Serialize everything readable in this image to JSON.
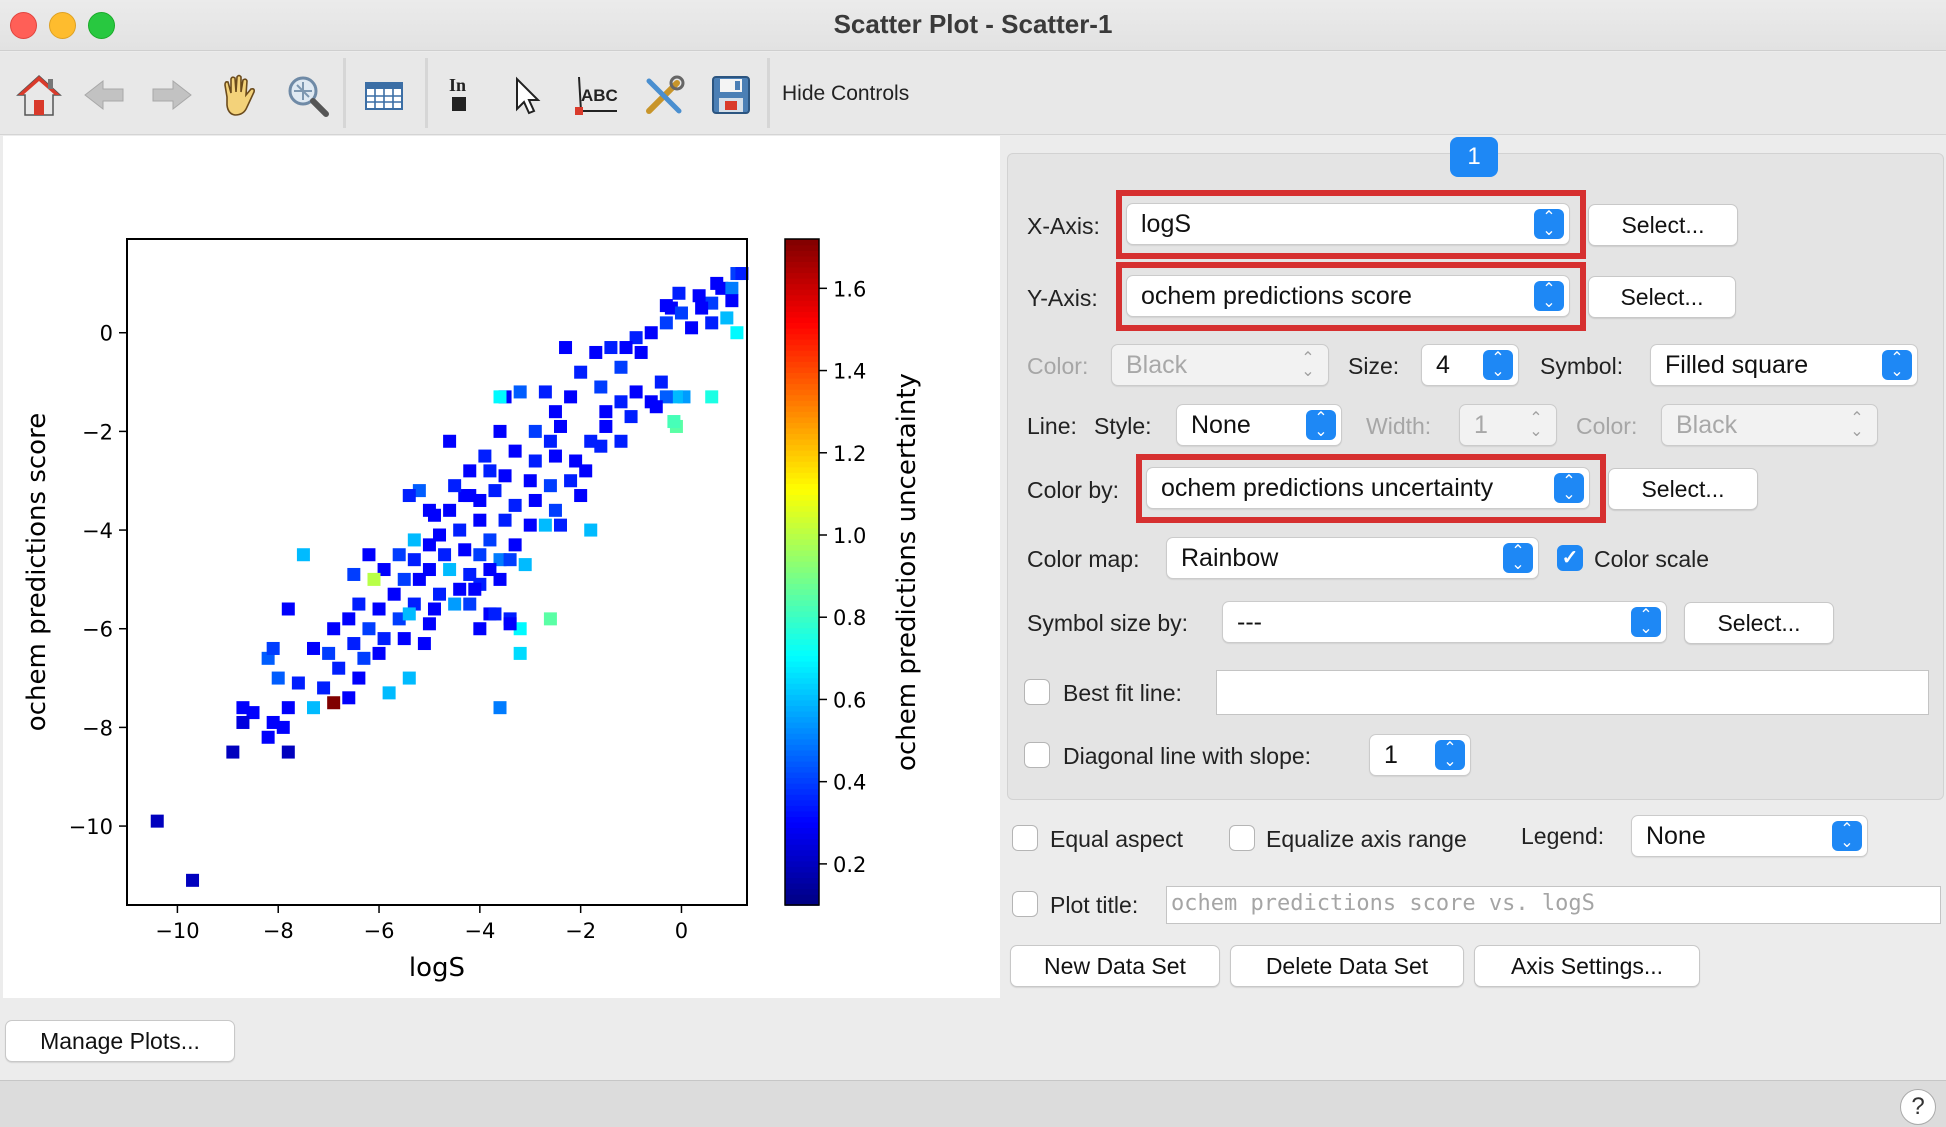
{
  "window": {
    "title": "Scatter Plot - Scatter-1"
  },
  "toolbar": {
    "icons": [
      "home-icon",
      "back-arrow-icon",
      "forward-arrow-icon",
      "pan-hand-icon",
      "zoom-icon",
      "table-icon",
      "ink-icon",
      "pointer-icon",
      "text-annotation-icon",
      "tools-icon",
      "save-icon"
    ],
    "hide_controls_label": "Hide Controls"
  },
  "tab": {
    "label": "1"
  },
  "controls": {
    "x_axis": {
      "label": "X-Axis:",
      "value": "logS",
      "select": "Select..."
    },
    "y_axis": {
      "label": "Y-Axis:",
      "value": "ochem predictions score",
      "select": "Select..."
    },
    "color": {
      "label": "Color:",
      "value": "Black"
    },
    "size": {
      "label": "Size:",
      "value": "4"
    },
    "symbol": {
      "label": "Symbol:",
      "value": "Filled square"
    },
    "line": {
      "label": "Line:",
      "style_label": "Style:",
      "style_value": "None",
      "width_label": "Width:",
      "width_value": "1",
      "color_label": "Color:",
      "color_value": "Black"
    },
    "color_by": {
      "label": "Color by:",
      "value": "ochem predictions uncertainty",
      "select": "Select..."
    },
    "color_map": {
      "label": "Color map:",
      "value": "Rainbow",
      "color_scale_label": "Color scale",
      "color_scale_checked": true
    },
    "symbol_size_by": {
      "label": "Symbol size by:",
      "value": "---",
      "select": "Select..."
    },
    "best_fit": {
      "label": "Best fit line:",
      "checked": false,
      "value": ""
    },
    "diagonal": {
      "label": "Diagonal line with slope:",
      "checked": false,
      "value": "1"
    },
    "equal_aspect": {
      "label": "Equal aspect",
      "checked": false
    },
    "equalize_axis": {
      "label": "Equalize axis range",
      "checked": false
    },
    "legend": {
      "label": "Legend:",
      "value": "None"
    },
    "plot_title": {
      "label": "Plot title:",
      "checked": false,
      "placeholder": "ochem predictions score vs. logS"
    },
    "buttons": {
      "new_data_set": "New Data Set",
      "delete_data_set": "Delete Data Set",
      "axis_settings": "Axis Settings..."
    }
  },
  "manage_plots": "Manage Plots...",
  "help": "?",
  "highlight_color": "#d63030",
  "accent_color": "#1e88f5",
  "chart_data": {
    "type": "scatter",
    "xlabel": "logS",
    "ylabel": "ochem predictions score",
    "colorbar_label": "ochem predictions uncertainty",
    "xlim": [
      -11.0,
      1.3
    ],
    "ylim": [
      -11.6,
      1.9
    ],
    "xticks": [
      -10,
      -8,
      -6,
      -4,
      -2,
      0
    ],
    "yticks": [
      0,
      -2,
      -4,
      -6,
      -8,
      -10
    ],
    "colorbar_ticks": [
      0.2,
      0.4,
      0.6,
      0.8,
      1.0,
      1.2,
      1.4,
      1.6
    ],
    "clim": [
      0.1,
      1.72
    ],
    "colormap": "jet",
    "marker": "square",
    "points": [
      [
        1.1,
        1.2,
        0.4
      ],
      [
        1.2,
        1.2,
        0.35
      ],
      [
        0.8,
        0.9,
        0.3
      ],
      [
        0.6,
        0.6,
        0.4
      ],
      [
        1.0,
        0.9,
        0.5
      ],
      [
        0.4,
        0.5,
        0.3
      ],
      [
        -0.2,
        0.5,
        0.3
      ],
      [
        0.0,
        0.4,
        0.4
      ],
      [
        0.9,
        0.3,
        0.6
      ],
      [
        1.1,
        0.0,
        0.7
      ],
      [
        0.6,
        0.2,
        0.35
      ],
      [
        0.2,
        0.1,
        0.3
      ],
      [
        -0.3,
        0.2,
        0.4
      ],
      [
        -0.6,
        0.0,
        0.3
      ],
      [
        -0.9,
        -0.1,
        0.35
      ],
      [
        -1.1,
        -0.3,
        0.3
      ],
      [
        -1.4,
        -0.3,
        0.35
      ],
      [
        0.6,
        -1.3,
        0.75
      ],
      [
        0.05,
        -1.3,
        0.55
      ],
      [
        -0.1,
        -1.3,
        0.6
      ],
      [
        -0.3,
        -1.3,
        0.45
      ],
      [
        -0.8,
        -0.4,
        0.3
      ],
      [
        -1.2,
        -0.7,
        0.4
      ],
      [
        -0.4,
        -1.0,
        0.35
      ],
      [
        -0.1,
        -1.9,
        0.85
      ],
      [
        -0.15,
        -1.8,
        0.82
      ],
      [
        -0.5,
        -1.5,
        0.3
      ],
      [
        -0.9,
        -1.2,
        0.3
      ],
      [
        -1.2,
        -1.4,
        0.35
      ],
      [
        -1.6,
        -1.1,
        0.4
      ],
      [
        -1.7,
        -0.4,
        0.3
      ],
      [
        -1.0,
        -1.7,
        0.35
      ],
      [
        -2.0,
        -0.8,
        0.35
      ],
      [
        -2.2,
        -1.3,
        0.3
      ],
      [
        -2.5,
        -1.6,
        0.3
      ],
      [
        -2.7,
        -1.2,
        0.35
      ],
      [
        -3.2,
        -1.2,
        0.45
      ],
      [
        -3.5,
        -1.3,
        0.3
      ],
      [
        -2.4,
        -1.9,
        0.3
      ],
      [
        -2.6,
        -2.2,
        0.35
      ],
      [
        -2.9,
        -2.0,
        0.4
      ],
      [
        -1.5,
        -1.9,
        0.3
      ],
      [
        -1.8,
        -2.2,
        0.35
      ],
      [
        -2.1,
        -2.6,
        0.3
      ],
      [
        -2.5,
        -2.5,
        0.3
      ],
      [
        -2.9,
        -2.6,
        0.35
      ],
      [
        -3.3,
        -2.4,
        0.3
      ],
      [
        -3.6,
        -2.0,
        0.3
      ],
      [
        -3.9,
        -2.5,
        0.35
      ],
      [
        -4.2,
        -2.8,
        0.3
      ],
      [
        -3.5,
        -2.9,
        0.3
      ],
      [
        -3.0,
        -3.0,
        0.3
      ],
      [
        -2.6,
        -3.1,
        0.4
      ],
      [
        -2.2,
        -3.0,
        0.35
      ],
      [
        -1.9,
        -2.8,
        0.3
      ],
      [
        -3.7,
        -3.2,
        0.35
      ],
      [
        -4.0,
        -3.4,
        0.3
      ],
      [
        -4.3,
        -3.3,
        0.3
      ],
      [
        -3.3,
        -3.5,
        0.35
      ],
      [
        -2.9,
        -3.4,
        0.3
      ],
      [
        -2.5,
        -3.6,
        0.4
      ],
      [
        -2.0,
        -3.3,
        0.3
      ],
      [
        -4.5,
        -3.1,
        0.35
      ],
      [
        -4.6,
        -3.6,
        0.3
      ],
      [
        -4.9,
        -3.7,
        0.3
      ],
      [
        -5.2,
        -3.2,
        0.45
      ],
      [
        -4.0,
        -3.8,
        0.3
      ],
      [
        -3.5,
        -3.8,
        0.35
      ],
      [
        -3.0,
        -3.9,
        0.3
      ],
      [
        -2.7,
        -3.9,
        0.6
      ],
      [
        -2.4,
        -3.9,
        0.35
      ],
      [
        -4.4,
        -4.0,
        0.35
      ],
      [
        -4.8,
        -4.1,
        0.3
      ],
      [
        -3.8,
        -4.2,
        0.4
      ],
      [
        -3.3,
        -4.3,
        0.3
      ],
      [
        -3.6,
        -4.6,
        0.5
      ],
      [
        -4.0,
        -4.5,
        0.4
      ],
      [
        -4.3,
        -4.4,
        0.3
      ],
      [
        -4.7,
        -4.5,
        0.35
      ],
      [
        -5.0,
        -4.3,
        0.3
      ],
      [
        -5.3,
        -4.2,
        0.6
      ],
      [
        -5.6,
        -4.5,
        0.4
      ],
      [
        -5.3,
        -4.6,
        0.35
      ],
      [
        -5.0,
        -4.8,
        0.3
      ],
      [
        -4.6,
        -4.8,
        0.6
      ],
      [
        -4.2,
        -4.9,
        0.35
      ],
      [
        -3.8,
        -4.8,
        0.3
      ],
      [
        -3.4,
        -4.6,
        0.4
      ],
      [
        -3.1,
        -4.7,
        0.6
      ],
      [
        -3.6,
        -5.0,
        0.3
      ],
      [
        -4.0,
        -5.1,
        0.35
      ],
      [
        -4.4,
        -5.2,
        0.3
      ],
      [
        -4.8,
        -5.3,
        0.35
      ],
      [
        -5.2,
        -5.0,
        0.3
      ],
      [
        -5.5,
        -5.0,
        0.4
      ],
      [
        -5.9,
        -4.8,
        0.3
      ],
      [
        -6.1,
        -5.0,
        1.0
      ],
      [
        -5.7,
        -5.3,
        0.3
      ],
      [
        -5.3,
        -5.5,
        0.35
      ],
      [
        -4.9,
        -5.6,
        0.3
      ],
      [
        -4.5,
        -5.5,
        0.55
      ],
      [
        -4.2,
        -5.5,
        0.4
      ],
      [
        -3.8,
        -5.7,
        0.3
      ],
      [
        -3.4,
        -5.8,
        0.35
      ],
      [
        -5.0,
        -5.9,
        0.3
      ],
      [
        -5.6,
        -5.8,
        0.4
      ],
      [
        -6.0,
        -5.6,
        0.3
      ],
      [
        -6.4,
        -5.5,
        0.35
      ],
      [
        -6.6,
        -5.8,
        0.3
      ],
      [
        -6.2,
        -6.0,
        0.4
      ],
      [
        -5.9,
        -6.2,
        0.35
      ],
      [
        -5.5,
        -6.2,
        0.3
      ],
      [
        -5.1,
        -6.3,
        0.3
      ],
      [
        -6.5,
        -6.3,
        0.35
      ],
      [
        -6.9,
        -6.0,
        0.3
      ],
      [
        -6.3,
        -6.6,
        0.4
      ],
      [
        -6.0,
        -6.5,
        0.3
      ],
      [
        -7.0,
        -6.5,
        0.4
      ],
      [
        -7.3,
        -6.4,
        0.3
      ],
      [
        -6.8,
        -6.8,
        0.35
      ],
      [
        -6.4,
        -7.0,
        0.3
      ],
      [
        -7.1,
        -7.2,
        0.35
      ],
      [
        -6.6,
        -7.4,
        0.3
      ],
      [
        -7.3,
        -7.6,
        0.6
      ],
      [
        -6.9,
        -7.5,
        1.72
      ],
      [
        -7.6,
        -7.1,
        0.35
      ],
      [
        -7.8,
        -5.6,
        0.3
      ],
      [
        -8.0,
        -7.0,
        0.45
      ],
      [
        -7.8,
        -7.6,
        0.3
      ],
      [
        -8.2,
        -6.6,
        0.45
      ],
      [
        -8.1,
        -6.4,
        0.4
      ],
      [
        -8.5,
        -7.7,
        0.3
      ],
      [
        -8.7,
        -7.9,
        0.25
      ],
      [
        -8.9,
        -8.5,
        0.2
      ],
      [
        -8.1,
        -7.9,
        0.3
      ],
      [
        -7.9,
        -8.0,
        0.3
      ],
      [
        -8.2,
        -8.2,
        0.3
      ],
      [
        -7.8,
        -8.5,
        0.2
      ],
      [
        -10.4,
        -9.9,
        0.2
      ],
      [
        -9.7,
        -11.1,
        0.2
      ],
      [
        -7.5,
        -4.5,
        0.6
      ],
      [
        -8.7,
        -7.6,
        0.3
      ],
      [
        -5.4,
        -5.7,
        0.6
      ],
      [
        -6.5,
        -4.9,
        0.4
      ],
      [
        -6.2,
        -4.5,
        0.3
      ],
      [
        -4.1,
        -5.2,
        0.3
      ],
      [
        -3.2,
        -6.0,
        0.7
      ],
      [
        -2.6,
        -5.8,
        0.85
      ],
      [
        -3.4,
        -5.9,
        0.3
      ],
      [
        -3.2,
        -6.5,
        0.65
      ],
      [
        -3.7,
        -5.7,
        0.35
      ],
      [
        -4.0,
        -6.0,
        0.3
      ],
      [
        -5.8,
        -7.3,
        0.6
      ],
      [
        -5.4,
        -7.0,
        0.6
      ],
      [
        -3.6,
        -7.6,
        0.5
      ],
      [
        -4.2,
        -3.3,
        0.3
      ],
      [
        -4.6,
        -2.2,
        0.3
      ],
      [
        -3.6,
        -1.3,
        0.7
      ],
      [
        -3.8,
        -2.8,
        0.35
      ],
      [
        -1.8,
        -4.0,
        0.6
      ],
      [
        -5.4,
        -3.3,
        0.35
      ],
      [
        -5.0,
        -3.6,
        0.3
      ],
      [
        -1.6,
        -2.3,
        0.35
      ],
      [
        -0.6,
        -1.4,
        0.3
      ],
      [
        -1.2,
        -2.2,
        0.35
      ],
      [
        -1.5,
        -1.6,
        0.3
      ],
      [
        -2.3,
        -0.3,
        0.3
      ],
      [
        -0.3,
        0.55,
        0.3
      ],
      [
        0.35,
        0.75,
        0.3
      ],
      [
        -0.05,
        0.8,
        0.35
      ],
      [
        1.0,
        0.65,
        0.3
      ],
      [
        0.7,
        1.0,
        0.3
      ]
    ]
  }
}
